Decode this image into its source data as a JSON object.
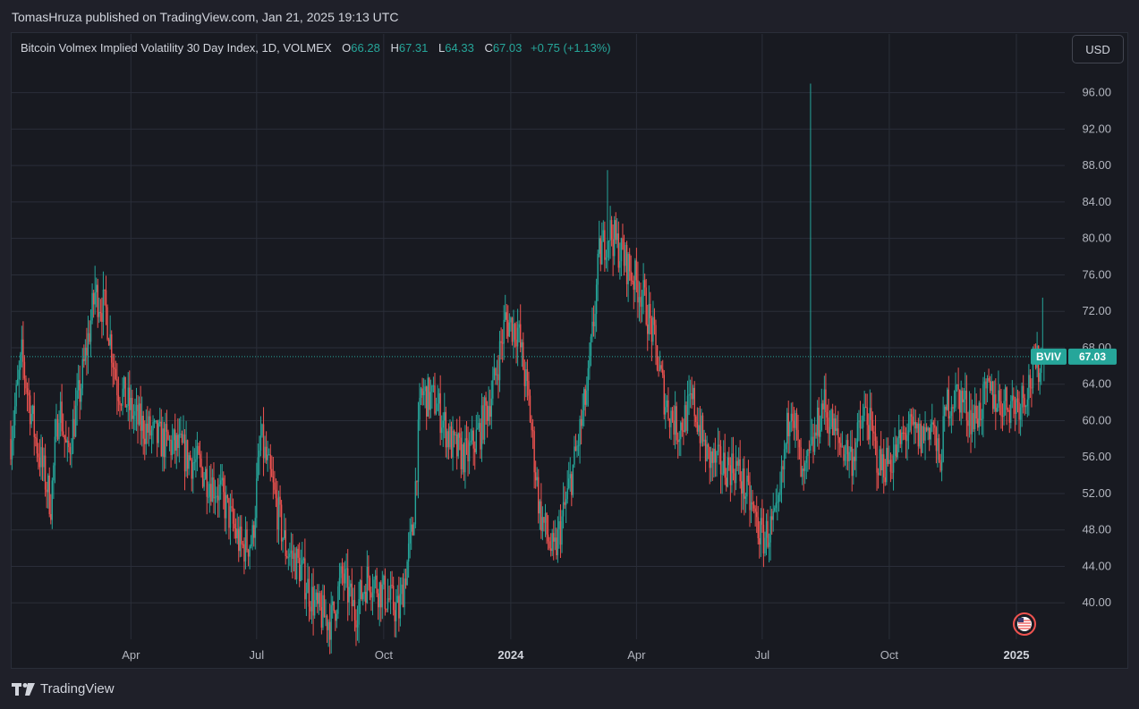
{
  "header": {
    "publisher_line": "TomasHruza published on TradingView.com, Jan 21, 2025 19:13 UTC"
  },
  "legend": {
    "title": "Bitcoin Volmex Implied Volatility 30 Day Index, 1D, VOLMEX",
    "o_key": "O",
    "o_val": "66.28",
    "h_key": "H",
    "h_val": "67.31",
    "l_key": "L",
    "l_val": "64.33",
    "c_key": "C",
    "c_val": "67.03",
    "change": "+0.75 (+1.13%)"
  },
  "currency_button": "USD",
  "price_tag": {
    "symbol": "BVIV",
    "value": "67.03"
  },
  "footer": {
    "brand": "TradingView"
  },
  "colors": {
    "up": "#26a69a",
    "down": "#ef5350",
    "grid": "#2a2e39",
    "background": "#181a21"
  },
  "chart_data": {
    "type": "candlestick",
    "title": "Bitcoin Volmex Implied Volatility 30 Day Index, 1D, VOLMEX",
    "ylim": [
      36,
      99.5
    ],
    "y_ticks": [
      40,
      44,
      48,
      52,
      56,
      60,
      64,
      68,
      72,
      76,
      80,
      84,
      88,
      92,
      96
    ],
    "y_tick_labels": [
      "40.00",
      "44.00",
      "48.00",
      "52.00",
      "56.00",
      "60.00",
      "64.00",
      "68.00",
      "72.00",
      "76.00",
      "80.00",
      "84.00",
      "88.00",
      "92.00",
      "96.00"
    ],
    "x_ticks": [
      {
        "date": "2023-04-01",
        "label": "Apr",
        "bold": false
      },
      {
        "date": "2023-07-01",
        "label": "Jul",
        "bold": false
      },
      {
        "date": "2023-10-01",
        "label": "Oct",
        "bold": false
      },
      {
        "date": "2024-01-01",
        "label": "2024",
        "bold": true
      },
      {
        "date": "2024-04-01",
        "label": "Apr",
        "bold": false
      },
      {
        "date": "2024-07-01",
        "label": "Jul",
        "bold": false
      },
      {
        "date": "2024-10-01",
        "label": "Oct",
        "bold": false
      },
      {
        "date": "2025-01-01",
        "label": "2025",
        "bold": true
      }
    ],
    "x_range": [
      "2023-01-04",
      "2025-02-05"
    ],
    "last_close": 67.03,
    "grid": true,
    "path_approx": [
      [
        "2023-01-04",
        58
      ],
      [
        "2023-01-12",
        67
      ],
      [
        "2023-01-22",
        58
      ],
      [
        "2023-02-02",
        51
      ],
      [
        "2023-02-08",
        62
      ],
      [
        "2023-02-14",
        56
      ],
      [
        "2023-02-24",
        64
      ],
      [
        "2023-03-06",
        74
      ],
      [
        "2023-03-14",
        72
      ],
      [
        "2023-03-22",
        64
      ],
      [
        "2023-04-05",
        60
      ],
      [
        "2023-04-20",
        58
      ],
      [
        "2023-05-05",
        57
      ],
      [
        "2023-05-20",
        55
      ],
      [
        "2023-06-05",
        52
      ],
      [
        "2023-06-20",
        46
      ],
      [
        "2023-06-28",
        47
      ],
      [
        "2023-07-04",
        58
      ],
      [
        "2023-07-12",
        53
      ],
      [
        "2023-07-22",
        46
      ],
      [
        "2023-08-01",
        44
      ],
      [
        "2023-08-14",
        39
      ],
      [
        "2023-08-24",
        38
      ],
      [
        "2023-09-01",
        43
      ],
      [
        "2023-09-10",
        39
      ],
      [
        "2023-09-20",
        43
      ],
      [
        "2023-10-01",
        41
      ],
      [
        "2023-10-12",
        39
      ],
      [
        "2023-10-22",
        48
      ],
      [
        "2023-10-28",
        63
      ],
      [
        "2023-11-08",
        62
      ],
      [
        "2023-11-20",
        57
      ],
      [
        "2023-11-30",
        56
      ],
      [
        "2023-12-10",
        59
      ],
      [
        "2023-12-20",
        64
      ],
      [
        "2023-12-28",
        71
      ],
      [
        "2024-01-06",
        70
      ],
      [
        "2024-01-14",
        62
      ],
      [
        "2024-01-22",
        50
      ],
      [
        "2024-02-01",
        45
      ],
      [
        "2024-02-10",
        51
      ],
      [
        "2024-02-18",
        57
      ],
      [
        "2024-02-26",
        64
      ],
      [
        "2024-03-05",
        78
      ],
      [
        "2024-03-12",
        81
      ],
      [
        "2024-03-22",
        78
      ],
      [
        "2024-04-05",
        74
      ],
      [
        "2024-04-12",
        70
      ],
      [
        "2024-04-22",
        62
      ],
      [
        "2024-05-01",
        59
      ],
      [
        "2024-05-12",
        62
      ],
      [
        "2024-05-22",
        56
      ],
      [
        "2024-06-01",
        55
      ],
      [
        "2024-06-12",
        55
      ],
      [
        "2024-06-22",
        51
      ],
      [
        "2024-07-01",
        47
      ],
      [
        "2024-07-12",
        49
      ],
      [
        "2024-07-22",
        63
      ],
      [
        "2024-07-30",
        53
      ],
      [
        "2024-08-05",
        56
      ],
      [
        "2024-08-14",
        62
      ],
      [
        "2024-08-24",
        58
      ],
      [
        "2024-09-04",
        56
      ],
      [
        "2024-09-14",
        61
      ],
      [
        "2024-09-24",
        55
      ],
      [
        "2024-10-04",
        56
      ],
      [
        "2024-10-14",
        59
      ],
      [
        "2024-10-24",
        58
      ],
      [
        "2024-11-01",
        60
      ],
      [
        "2024-11-06",
        55
      ],
      [
        "2024-11-12",
        62
      ],
      [
        "2024-11-20",
        63
      ],
      [
        "2024-12-01",
        60
      ],
      [
        "2024-12-12",
        63
      ],
      [
        "2024-12-22",
        62
      ],
      [
        "2025-01-02",
        62
      ],
      [
        "2025-01-10",
        64
      ],
      [
        "2025-01-16",
        66
      ],
      [
        "2025-01-21",
        67
      ]
    ],
    "spikes": [
      {
        "date": "2023-03-06",
        "high": 77
      },
      {
        "date": "2024-03-11",
        "high": 87.5
      },
      {
        "date": "2024-08-05",
        "high": 97
      },
      {
        "date": "2025-01-20",
        "high": 73.5
      }
    ]
  }
}
